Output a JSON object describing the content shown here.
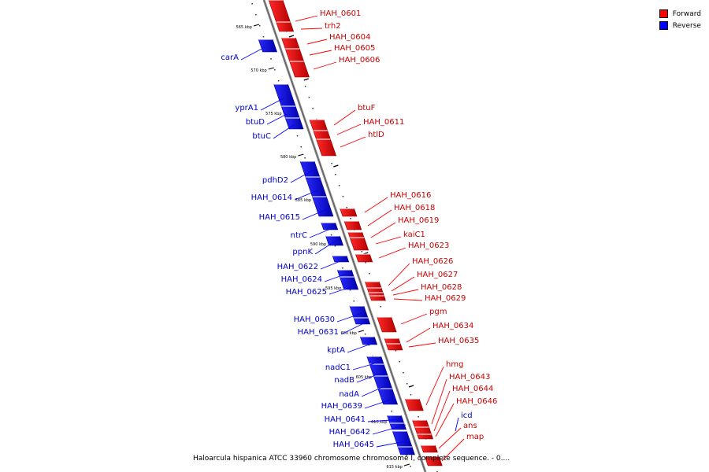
{
  "legend": {
    "forward": {
      "label": "Forward",
      "color": "#ff0000"
    },
    "reverse": {
      "label": "Reverse",
      "color": "#0000ff"
    }
  },
  "caption": "Haloarcula hispanica ATCC 33960 chromosome chromosome I, complete sequence. - 0....",
  "kbp_ticks": [
    "565 kbp",
    "570 kbp",
    "575 kbp",
    "580 kbp",
    "585 kbp",
    "590 kbp",
    "595 kbp",
    "600 kbp",
    "605 kbp",
    "610 kbp",
    "615 kbp"
  ],
  "forward_genes": [
    "HAH_0601",
    "trh2",
    "HAH_0604",
    "HAH_0605",
    "HAH_0606",
    "btuF",
    "HAH_0611",
    "htlD",
    "HAH_0616",
    "HAH_0618",
    "HAH_0619",
    "kaiC1",
    "HAH_0623",
    "HAH_0626",
    "HAH_0627",
    "HAH_0628",
    "HAH_0629",
    "pgm",
    "HAH_0634",
    "HAH_0635",
    "hmg",
    "HAH_0643",
    "HAH_0644",
    "HAH_0646",
    "ans",
    "map"
  ],
  "reverse_genes": [
    "carA",
    "yprA1",
    "btuD",
    "btuC",
    "pdhD2",
    "HAH_0614",
    "HAH_0615",
    "ntrC",
    "ppnK",
    "HAH_0622",
    "HAH_0624",
    "HAH_0625",
    "HAH_0630",
    "HAH_0631",
    "kptA",
    "nadC1",
    "nadB",
    "nadA",
    "HAH_0639",
    "HAH_0641",
    "HAH_0642",
    "HAH_0645",
    "icd"
  ]
}
